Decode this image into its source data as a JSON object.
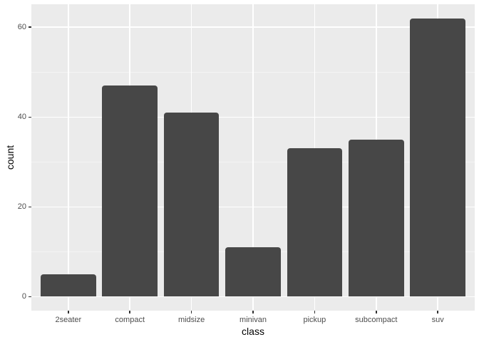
{
  "chart_data": {
    "type": "bar",
    "title": "",
    "xlabel": "class",
    "ylabel": "count",
    "categories": [
      "2seater",
      "compact",
      "midsize",
      "minivan",
      "pickup",
      "subcompact",
      "suv"
    ],
    "values": [
      5,
      47,
      41,
      11,
      33,
      35,
      62
    ],
    "yticks": [
      0,
      20,
      40,
      60
    ],
    "yticks_minor": [
      10,
      30,
      50
    ],
    "ylim": [
      0,
      62
    ],
    "expand_mult_y": 0.05,
    "expand_add_x": 0.6,
    "bar_width_ratio": 0.9,
    "grid": true,
    "legend_position": "none",
    "colors": {
      "background": "#FFFFFF",
      "panel_bg": "#EBEBEB",
      "grid_major": "#FFFFFF",
      "grid_minor": "#F4F4F4",
      "bar_fill": "#474747",
      "tick_text": "#4D4D4D",
      "tick_mark": "#333333",
      "axis_title": "#000000"
    }
  }
}
